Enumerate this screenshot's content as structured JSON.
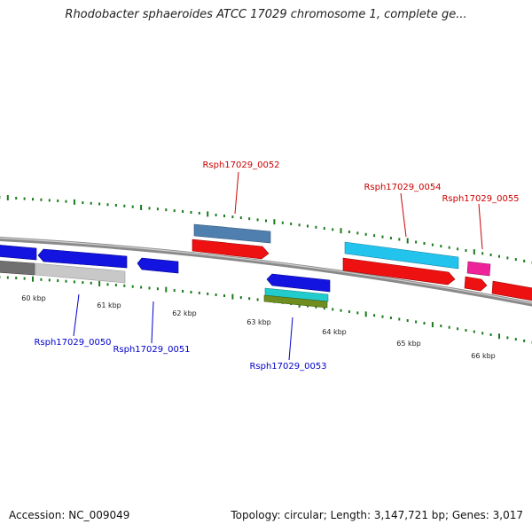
{
  "title": "Rhodobacter sphaeroides ATCC 17029 chromosome 1, complete ge...",
  "footer": {
    "accession": "Accession: NC_009049",
    "stats": "Topology: circular; Length: 3,147,721 bp; Genes: 3,017"
  },
  "colors": {
    "backbone": "#8a8a8a",
    "ticks": "#1a7a1a",
    "forward_label": "#cc0000",
    "reverse_label": "#0000cc",
    "gene_blue": "#1414e0",
    "gene_grey": "#707070",
    "gene_light_grey": "#c8c8c8",
    "gene_steel": "#4f7fae",
    "gene_red": "#ee1111",
    "gene_sky": "#22c4ee",
    "gene_magenta": "#ee2299",
    "gene_cyan": "#22cccc",
    "gene_olive": "#6f8e1f"
  },
  "kbp_labels": [
    "60 kbp",
    "61 kbp",
    "62 kbp",
    "63 kbp",
    "64 kbp",
    "65 kbp",
    "66 kbp"
  ],
  "gene_labels": {
    "forward": [
      "Rsph17029_0052",
      "Rsph17029_0054",
      "Rsph17029_0055"
    ],
    "reverse": [
      "Rsph17029_0050",
      "Rsph17029_0051",
      "Rsph17029_0053"
    ]
  }
}
